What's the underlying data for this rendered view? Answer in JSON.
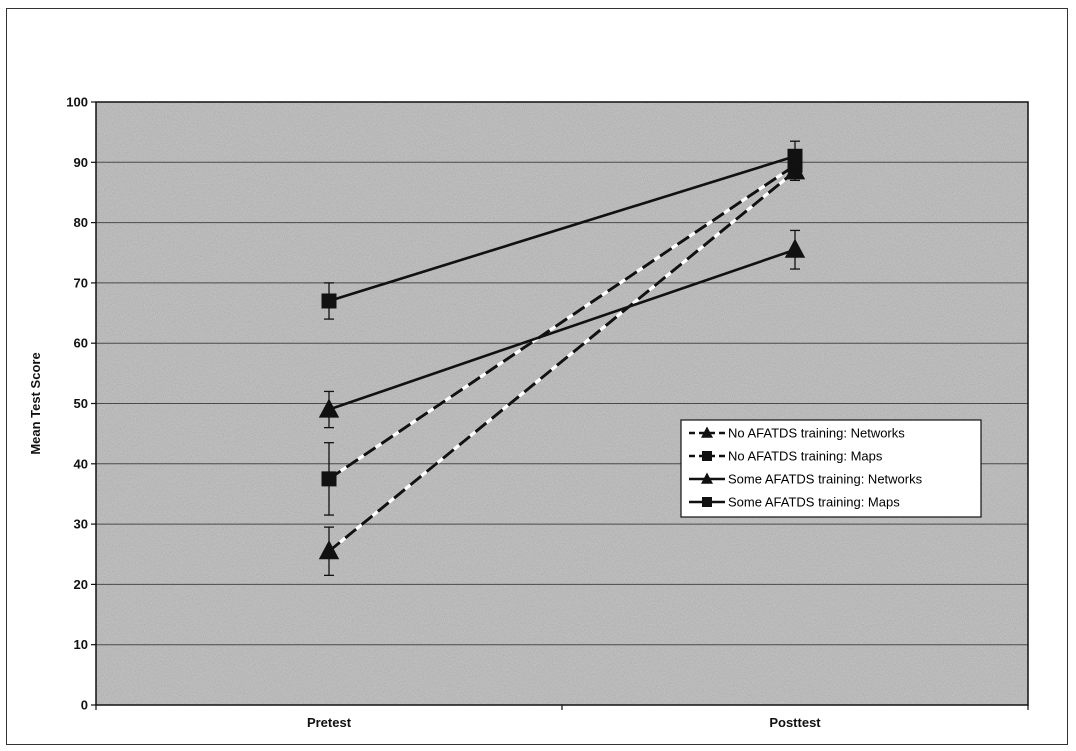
{
  "chart_data": {
    "type": "line",
    "title": "",
    "xlabel": "",
    "ylabel": "Mean Test Score",
    "categories": [
      "Pretest",
      "Posttest"
    ],
    "ylim": [
      0,
      100
    ],
    "yticks": [
      0,
      10,
      20,
      30,
      40,
      50,
      60,
      70,
      80,
      90,
      100
    ],
    "grid": true,
    "legend_position": "right",
    "series": [
      {
        "name": "No AFATDS training: Networks",
        "marker": "triangle",
        "line_style": "dashed",
        "values": [
          25.5,
          88.5
        ],
        "error": [
          4,
          1.5
        ]
      },
      {
        "name": "No AFATDS training: Maps",
        "marker": "square",
        "line_style": "dashed",
        "values": [
          37.5,
          89.5
        ],
        "error": [
          6,
          1.5
        ]
      },
      {
        "name": "Some AFATDS training: Networks",
        "marker": "triangle",
        "line_style": "solid",
        "values": [
          49,
          75.5
        ],
        "error": [
          3,
          3.2
        ]
      },
      {
        "name": "Some AFATDS training: Maps",
        "marker": "square",
        "line_style": "solid",
        "values": [
          67,
          91
        ],
        "error": [
          3,
          2.5
        ]
      }
    ],
    "colors": {
      "plot_background": "#b9b9b9",
      "line": "#111111",
      "grid": "#4a4a4a"
    }
  }
}
